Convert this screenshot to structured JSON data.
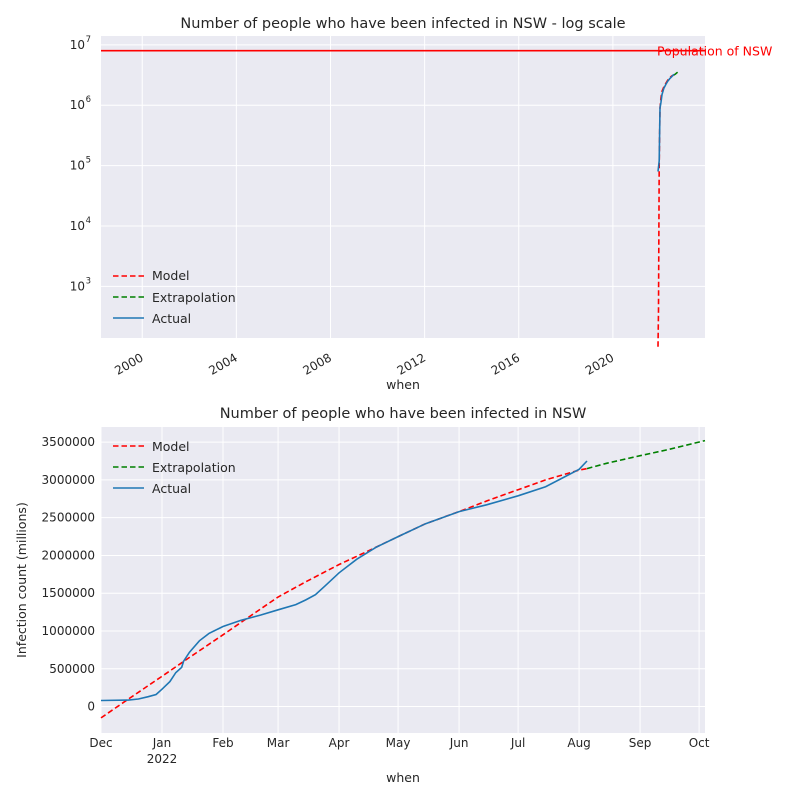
{
  "colors": {
    "background": "#eaeaf2",
    "grid": "#ffffff",
    "model": "#ff0000",
    "extrapolation": "#008000",
    "actual": "#1f77b4",
    "text": "#262626"
  },
  "chart_data": [
    {
      "type": "line",
      "title": "Number of people who have been infected in NSW - log scale",
      "xlabel": "when",
      "ylabel": "",
      "yscale": "log",
      "grid": true,
      "legend_position": "lower-left",
      "xlim": [
        "1998-04-01",
        "2023-12-01"
      ],
      "ylim": [
        140,
        14000000
      ],
      "x_ticks": [
        "2000-01-01",
        "2004-01-01",
        "2008-01-01",
        "2012-01-01",
        "2016-01-01",
        "2020-01-01"
      ],
      "x_tick_labels": [
        "2000",
        "2004",
        "2008",
        "2012",
        "2016",
        "2020"
      ],
      "y_ticks": [
        1000,
        10000,
        100000,
        1000000,
        10000000
      ],
      "y_tick_labels": [
        {
          "base": "10",
          "exp": "3"
        },
        {
          "base": "10",
          "exp": "4"
        },
        {
          "base": "10",
          "exp": "5"
        },
        {
          "base": "10",
          "exp": "6"
        },
        {
          "base": "10",
          "exp": "7"
        }
      ],
      "reference_line": {
        "y": 8000000,
        "label": "Population of NSW"
      },
      "series": [
        {
          "name": "Model",
          "style": "dashed",
          "color": "#ff0000",
          "x": [
            "2021-12-01",
            "2021-12-10",
            "2021-12-20",
            "2022-01-01",
            "2022-01-15",
            "2022-02-01",
            "2022-03-01",
            "2022-04-01",
            "2022-05-01",
            "2022-06-01",
            "2022-07-01",
            "2022-08-01"
          ],
          "y": [
            100,
            400,
            100000,
            900000,
            1300000,
            1700000,
            2000000,
            2300000,
            2600000,
            2850000,
            3050000,
            3150000
          ]
        },
        {
          "name": "Extrapolation",
          "style": "dashed",
          "color": "#008000",
          "x": [
            "2022-08-05",
            "2022-09-01",
            "2022-10-01"
          ],
          "y": [
            3150000,
            3300000,
            3520000
          ]
        },
        {
          "name": "Actual",
          "style": "solid",
          "color": "#1f77b4",
          "x": [
            "2021-12-01",
            "2021-12-20",
            "2022-01-01",
            "2022-01-15",
            "2022-02-01",
            "2022-03-01",
            "2022-04-01",
            "2022-05-01",
            "2022-06-01",
            "2022-07-01",
            "2022-08-05"
          ],
          "y": [
            80000,
            120000,
            900000,
            1100000,
            1500000,
            1900000,
            2200000,
            2500000,
            2750000,
            2950000,
            3250000
          ]
        }
      ]
    },
    {
      "type": "line",
      "title": "Number of people who have been infected in NSW",
      "xlabel": "when",
      "ylabel": "Infection count (millions)",
      "grid": true,
      "legend_position": "top-left",
      "xlim": [
        "2021-12-01",
        "2022-10-04"
      ],
      "ylim": [
        -350000,
        3700000
      ],
      "x_ticks": [
        "2021-12-01",
        "2022-01-01",
        "2022-02-01",
        "2022-03-01",
        "2022-04-01",
        "2022-05-01",
        "2022-06-01",
        "2022-07-01",
        "2022-08-01",
        "2022-09-01",
        "2022-10-01"
      ],
      "x_tick_labels": [
        "Dec",
        "Jan",
        "Feb",
        "Mar",
        "Apr",
        "May",
        "Jun",
        "Jul",
        "Aug",
        "Sep",
        "Oct"
      ],
      "x_tick_year": {
        "under": "Jan",
        "label": "2022"
      },
      "y_ticks": [
        0,
        500000,
        1000000,
        1500000,
        2000000,
        2500000,
        3000000,
        3500000
      ],
      "y_tick_labels": [
        "0",
        "500000",
        "1000000",
        "1500000",
        "2000000",
        "2500000",
        "3000000",
        "3500000"
      ],
      "series": [
        {
          "name": "Model",
          "style": "dashed",
          "color": "#ff0000",
          "x": [
            "2021-12-01",
            "2021-12-15",
            "2022-01-01",
            "2022-01-15",
            "2022-02-01",
            "2022-02-15",
            "2022-03-01",
            "2022-03-15",
            "2022-04-01",
            "2022-04-15",
            "2022-05-01",
            "2022-05-15",
            "2022-06-01",
            "2022-06-15",
            "2022-07-01",
            "2022-07-15",
            "2022-08-01",
            "2022-08-05"
          ],
          "y": [
            -150000,
            100000,
            400000,
            650000,
            950000,
            1200000,
            1450000,
            1650000,
            1880000,
            2050000,
            2250000,
            2420000,
            2580000,
            2720000,
            2870000,
            3000000,
            3130000,
            3150000
          ]
        },
        {
          "name": "Extrapolation",
          "style": "dashed",
          "color": "#008000",
          "x": [
            "2022-08-05",
            "2022-08-15",
            "2022-09-01",
            "2022-09-15",
            "2022-10-04"
          ],
          "y": [
            3150000,
            3220000,
            3320000,
            3400000,
            3520000
          ]
        },
        {
          "name": "Actual",
          "style": "solid",
          "color": "#1f77b4",
          "x": [
            "2021-12-01",
            "2021-12-15",
            "2021-12-20",
            "2021-12-25",
            "2021-12-29",
            "2022-01-01",
            "2022-01-05",
            "2022-01-08",
            "2022-01-11",
            "2022-01-12",
            "2022-01-15",
            "2022-01-20",
            "2022-01-25",
            "2022-02-01",
            "2022-02-10",
            "2022-02-20",
            "2022-03-01",
            "2022-03-10",
            "2022-03-15",
            "2022-03-20",
            "2022-03-25",
            "2022-04-01",
            "2022-04-10",
            "2022-04-20",
            "2022-05-01",
            "2022-05-15",
            "2022-06-01",
            "2022-06-15",
            "2022-07-01",
            "2022-07-15",
            "2022-08-01",
            "2022-08-05"
          ],
          "y": [
            80000,
            85000,
            100000,
            130000,
            160000,
            230000,
            330000,
            450000,
            520000,
            600000,
            720000,
            870000,
            970000,
            1060000,
            1140000,
            1210000,
            1280000,
            1350000,
            1410000,
            1480000,
            1600000,
            1770000,
            1950000,
            2110000,
            2250000,
            2420000,
            2580000,
            2670000,
            2790000,
            2910000,
            3140000,
            3250000
          ]
        }
      ]
    }
  ]
}
